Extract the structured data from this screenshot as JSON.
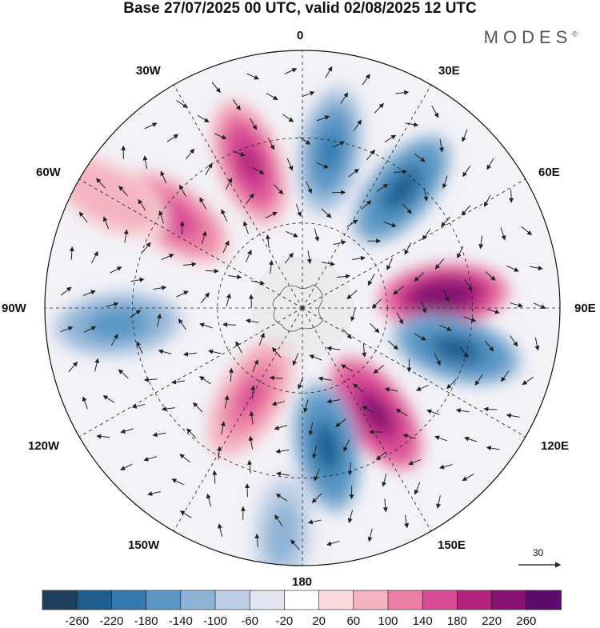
{
  "title": "Base 27/07/2025 00 UTC, valid 02/08/2025 12 UTC",
  "brand": "MODES",
  "brand_mark": "©",
  "longitude_labels": {
    "lon_0": "0",
    "lon_30e": "30E",
    "lon_60e": "60E",
    "lon_90e": "90E",
    "lon_120e": "120E",
    "lon_150e": "150E",
    "lon_180": "180",
    "lon_150w": "150W",
    "lon_120w": "120W",
    "lon_90w": "90W",
    "lon_60w": "60W",
    "lon_30w": "30W"
  },
  "wind_scale": {
    "value": "30"
  },
  "colorbar": {
    "colors": [
      "#1e3f5e",
      "#1f5d8e",
      "#3479ad",
      "#5a97c5",
      "#8db3d6",
      "#bccde5",
      "#e2e4f0",
      "#ffffff",
      "#f9d9dd",
      "#f4b3c0",
      "#ec7fa6",
      "#d94c96",
      "#b2237d",
      "#861372",
      "#5b0c6b"
    ],
    "labels": [
      "-260",
      "-220",
      "-180",
      "-140",
      "-100",
      "-60",
      "-20",
      "20",
      "60",
      "100",
      "140",
      "180",
      "220",
      "260"
    ]
  },
  "anomalies": [
    {
      "name": "anomaly-low-north",
      "lon": 10,
      "r": 0.62,
      "value": -200
    },
    {
      "name": "anomaly-high-north",
      "lon": -20,
      "r": 0.6,
      "value": 200
    },
    {
      "name": "anomaly-low-ne",
      "lon": 40,
      "r": 0.6,
      "value": -240
    },
    {
      "name": "anomaly-high-east",
      "lon": 85,
      "r": 0.55,
      "value": 260
    },
    {
      "name": "anomaly-low-east",
      "lon": 105,
      "r": 0.62,
      "value": -230
    },
    {
      "name": "anomaly-high-se",
      "lon": 145,
      "r": 0.5,
      "value": 230
    },
    {
      "name": "anomaly-low-south",
      "lon": 170,
      "r": 0.55,
      "value": -230
    },
    {
      "name": "anomaly-high-sw",
      "lon": -150,
      "r": 0.4,
      "value": 160
    },
    {
      "name": "anomaly-low-west",
      "lon": -95,
      "r": 0.72,
      "value": -170
    },
    {
      "name": "anomaly-high-nw",
      "lon": -55,
      "r": 0.62,
      "value": 170
    },
    {
      "name": "anomaly-high-far-west",
      "lon": -60,
      "r": 0.87,
      "value": 100
    },
    {
      "name": "anomaly-low-far-south",
      "lon": -175,
      "r": 0.88,
      "value": -120
    }
  ]
}
